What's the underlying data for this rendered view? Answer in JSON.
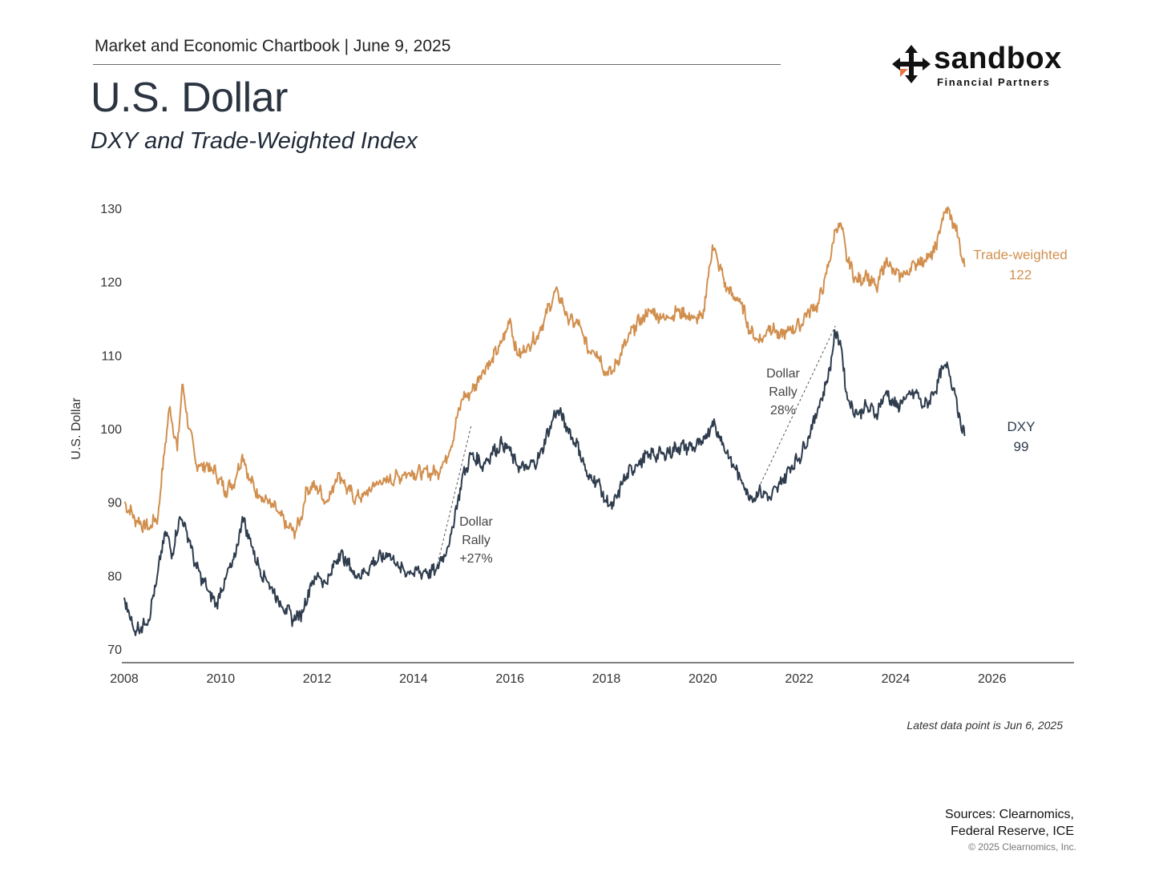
{
  "header": {
    "chartbook": "Market and Economic Chartbook | June 9, 2025",
    "title": "U.S. Dollar",
    "subtitle": "DXY and Trade-Weighted Index"
  },
  "logo": {
    "name": "sandbox",
    "tagline": "Financial Partners",
    "icon": "four-arrows-cross-icon",
    "accent_color": "#e8744a"
  },
  "chart_data": {
    "type": "line",
    "ylabel": "U.S. Dollar",
    "ylim": [
      70,
      130
    ],
    "yticks": [
      "70",
      "80",
      "90",
      "100",
      "110",
      "120",
      "130"
    ],
    "xlim": [
      2008,
      2027.7
    ],
    "xticks": [
      "2008",
      "2010",
      "2012",
      "2014",
      "2016",
      "2018",
      "2020",
      "2022",
      "2024",
      "2026"
    ],
    "grid": false,
    "series": [
      {
        "name": "Trade-weighted",
        "color": "#d18f4e",
        "end_label": "Trade-weighted",
        "end_value_label": "122",
        "points": [
          [
            2008.0,
            90
          ],
          [
            2008.25,
            87.5
          ],
          [
            2008.5,
            86.5
          ],
          [
            2008.7,
            88
          ],
          [
            2008.85,
            98
          ],
          [
            2008.95,
            103
          ],
          [
            2009.1,
            97
          ],
          [
            2009.2,
            106
          ],
          [
            2009.35,
            100
          ],
          [
            2009.5,
            95
          ],
          [
            2009.7,
            95
          ],
          [
            2009.9,
            94
          ],
          [
            2010.1,
            91.5
          ],
          [
            2010.3,
            93
          ],
          [
            2010.45,
            96.5
          ],
          [
            2010.6,
            93
          ],
          [
            2010.8,
            91
          ],
          [
            2011.0,
            90
          ],
          [
            2011.2,
            88.5
          ],
          [
            2011.4,
            86.5
          ],
          [
            2011.55,
            86
          ],
          [
            2011.65,
            87.5
          ],
          [
            2011.8,
            92
          ],
          [
            2012.0,
            92
          ],
          [
            2012.2,
            90
          ],
          [
            2012.45,
            94
          ],
          [
            2012.6,
            92
          ],
          [
            2012.8,
            90.5
          ],
          [
            2013.0,
            91
          ],
          [
            2013.2,
            92.5
          ],
          [
            2013.5,
            93
          ],
          [
            2013.7,
            93.5
          ],
          [
            2013.9,
            94
          ],
          [
            2014.2,
            94
          ],
          [
            2014.5,
            94
          ],
          [
            2014.75,
            97
          ],
          [
            2015.0,
            104
          ],
          [
            2015.2,
            105
          ],
          [
            2015.45,
            108
          ],
          [
            2015.6,
            109
          ],
          [
            2015.85,
            112
          ],
          [
            2016.0,
            115
          ],
          [
            2016.15,
            110
          ],
          [
            2016.35,
            111
          ],
          [
            2016.6,
            113
          ],
          [
            2016.9,
            118
          ],
          [
            2017.0,
            118.5
          ],
          [
            2017.2,
            115
          ],
          [
            2017.45,
            114
          ],
          [
            2017.6,
            111
          ],
          [
            2017.8,
            110.5
          ],
          [
            2018.0,
            107.5
          ],
          [
            2018.15,
            108
          ],
          [
            2018.35,
            111
          ],
          [
            2018.6,
            114
          ],
          [
            2018.9,
            116
          ],
          [
            2019.2,
            115
          ],
          [
            2019.5,
            116
          ],
          [
            2019.8,
            115
          ],
          [
            2020.0,
            115
          ],
          [
            2020.2,
            125
          ],
          [
            2020.35,
            122
          ],
          [
            2020.5,
            119
          ],
          [
            2020.8,
            117
          ],
          [
            2021.0,
            113
          ],
          [
            2021.2,
            112
          ],
          [
            2021.4,
            114
          ],
          [
            2021.6,
            112.5
          ],
          [
            2021.8,
            113.5
          ],
          [
            2022.0,
            114
          ],
          [
            2022.2,
            116
          ],
          [
            2022.4,
            117
          ],
          [
            2022.6,
            122
          ],
          [
            2022.75,
            127
          ],
          [
            2022.85,
            128
          ],
          [
            2023.0,
            123
          ],
          [
            2023.2,
            120
          ],
          [
            2023.4,
            121
          ],
          [
            2023.6,
            119
          ],
          [
            2023.8,
            123
          ],
          [
            2024.0,
            121
          ],
          [
            2024.2,
            121
          ],
          [
            2024.4,
            122.5
          ],
          [
            2024.6,
            123
          ],
          [
            2024.8,
            124
          ],
          [
            2024.95,
            128
          ],
          [
            2025.05,
            130
          ],
          [
            2025.2,
            128
          ],
          [
            2025.3,
            126
          ],
          [
            2025.38,
            123
          ],
          [
            2025.43,
            122
          ]
        ]
      },
      {
        "name": "DXY",
        "color": "#2e3c4d",
        "end_label": "DXY",
        "end_value_label": "99",
        "points": [
          [
            2008.0,
            77
          ],
          [
            2008.1,
            75
          ],
          [
            2008.2,
            72.5
          ],
          [
            2008.35,
            73
          ],
          [
            2008.5,
            74
          ],
          [
            2008.65,
            78.5
          ],
          [
            2008.85,
            86
          ],
          [
            2009.0,
            83
          ],
          [
            2009.15,
            88
          ],
          [
            2009.3,
            86
          ],
          [
            2009.5,
            81
          ],
          [
            2009.7,
            78.5
          ],
          [
            2009.9,
            76
          ],
          [
            2010.1,
            79.5
          ],
          [
            2010.3,
            82.5
          ],
          [
            2010.45,
            88
          ],
          [
            2010.6,
            85
          ],
          [
            2010.8,
            81
          ],
          [
            2011.0,
            79
          ],
          [
            2011.2,
            76.5
          ],
          [
            2011.35,
            75.5
          ],
          [
            2011.5,
            74
          ],
          [
            2011.7,
            75
          ],
          [
            2011.85,
            78.5
          ],
          [
            2012.0,
            80
          ],
          [
            2012.2,
            79
          ],
          [
            2012.45,
            83
          ],
          [
            2012.6,
            82
          ],
          [
            2012.8,
            80
          ],
          [
            2013.0,
            80.5
          ],
          [
            2013.2,
            82
          ],
          [
            2013.5,
            83
          ],
          [
            2013.7,
            81
          ],
          [
            2013.9,
            80.5
          ],
          [
            2014.2,
            80.5
          ],
          [
            2014.45,
            80.5
          ],
          [
            2014.75,
            84.5
          ],
          [
            2015.0,
            93
          ],
          [
            2015.2,
            96.5
          ],
          [
            2015.45,
            95
          ],
          [
            2015.6,
            96.5
          ],
          [
            2015.85,
            98
          ],
          [
            2016.0,
            97
          ],
          [
            2016.15,
            95
          ],
          [
            2016.35,
            94.5
          ],
          [
            2016.6,
            96
          ],
          [
            2016.9,
            101.5
          ],
          [
            2017.0,
            102.5
          ],
          [
            2017.2,
            100
          ],
          [
            2017.45,
            97
          ],
          [
            2017.6,
            93.5
          ],
          [
            2017.8,
            93
          ],
          [
            2018.0,
            90
          ],
          [
            2018.15,
            89.5
          ],
          [
            2018.35,
            93
          ],
          [
            2018.6,
            95
          ],
          [
            2018.9,
            96.5
          ],
          [
            2019.2,
            96.5
          ],
          [
            2019.5,
            97.5
          ],
          [
            2019.8,
            97.5
          ],
          [
            2020.0,
            98
          ],
          [
            2020.2,
            101
          ],
          [
            2020.35,
            99
          ],
          [
            2020.55,
            96
          ],
          [
            2020.8,
            93
          ],
          [
            2021.0,
            90.5
          ],
          [
            2021.2,
            91.5
          ],
          [
            2021.4,
            90.5
          ],
          [
            2021.6,
            92.5
          ],
          [
            2021.85,
            95
          ],
          [
            2022.0,
            96
          ],
          [
            2022.2,
            99
          ],
          [
            2022.4,
            103
          ],
          [
            2022.6,
            107
          ],
          [
            2022.75,
            113
          ],
          [
            2022.85,
            112
          ],
          [
            2023.0,
            104
          ],
          [
            2023.2,
            102
          ],
          [
            2023.4,
            103
          ],
          [
            2023.6,
            102
          ],
          [
            2023.8,
            105
          ],
          [
            2024.0,
            103
          ],
          [
            2024.2,
            104
          ],
          [
            2024.4,
            105
          ],
          [
            2024.6,
            103
          ],
          [
            2024.8,
            105
          ],
          [
            2025.0,
            108.5
          ],
          [
            2025.1,
            108
          ],
          [
            2025.25,
            104.5
          ],
          [
            2025.35,
            100.5
          ],
          [
            2025.43,
            99
          ]
        ]
      }
    ],
    "annotations": [
      {
        "lines": [
          "Dollar",
          "Rally",
          "+27%"
        ],
        "from": [
          2014.45,
          80.3
        ],
        "to": [
          2015.2,
          100.5
        ]
      },
      {
        "lines": [
          "Dollar",
          "Rally",
          "28%"
        ],
        "from": [
          2021.2,
          92.5
        ],
        "to": [
          2022.75,
          114
        ]
      }
    ]
  },
  "footer": {
    "latest": "Latest data point is Jun 6, 2025",
    "sources_line1": "Sources: Clearnomics,",
    "sources_line2": "Federal Reserve, ICE",
    "copyright": "© 2025 Clearnomics, Inc."
  }
}
